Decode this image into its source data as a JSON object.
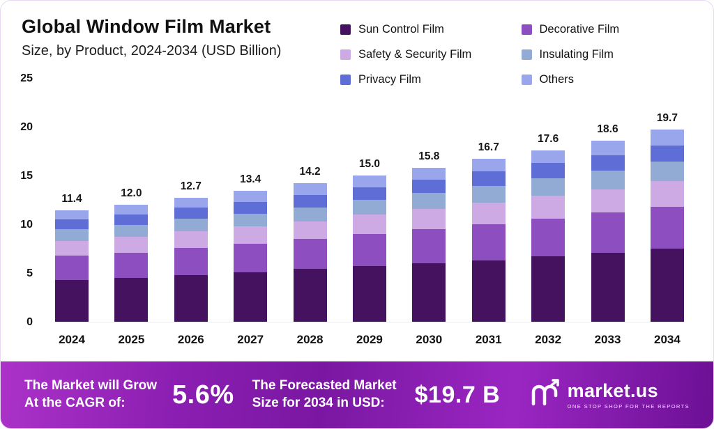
{
  "header": {
    "title": "Global Window Film Market",
    "subtitle": "Size, by Product, 2024-2034 (USD Billion)"
  },
  "chart_data": {
    "type": "bar",
    "stacked": true,
    "title": "Global Window Film Market Size, by Product, 2024-2034 (USD Billion)",
    "xlabel": "",
    "ylabel": "",
    "ylim": [
      0,
      25
    ],
    "yticks": [
      0,
      5,
      10,
      15,
      20,
      25
    ],
    "grid": false,
    "legend_position": "top-right",
    "categories": [
      "2024",
      "2025",
      "2026",
      "2027",
      "2028",
      "2029",
      "2030",
      "2031",
      "2032",
      "2033",
      "2034"
    ],
    "series": [
      {
        "name": "Sun Control Film",
        "color": "#45125f",
        "values": [
          4.3,
          4.5,
          4.8,
          5.1,
          5.4,
          5.7,
          6.0,
          6.3,
          6.7,
          7.1,
          7.5
        ]
      },
      {
        "name": "Decorative Film",
        "color": "#8d4fc0",
        "values": [
          2.5,
          2.6,
          2.8,
          2.9,
          3.1,
          3.3,
          3.5,
          3.7,
          3.9,
          4.1,
          4.3
        ]
      },
      {
        "name": "Safety & Security Film",
        "color": "#cdaae4",
        "values": [
          1.5,
          1.6,
          1.7,
          1.8,
          1.8,
          2.0,
          2.1,
          2.2,
          2.3,
          2.4,
          2.6
        ]
      },
      {
        "name": "Insulating Film",
        "color": "#92abd5",
        "values": [
          1.2,
          1.2,
          1.3,
          1.3,
          1.4,
          1.5,
          1.6,
          1.7,
          1.8,
          1.9,
          2.0
        ]
      },
      {
        "name": "Privacy Film",
        "color": "#5f6ed6",
        "values": [
          1.0,
          1.1,
          1.1,
          1.2,
          1.3,
          1.3,
          1.4,
          1.5,
          1.6,
          1.6,
          1.7
        ]
      },
      {
        "name": "Others",
        "color": "#9aa6ec",
        "values": [
          0.9,
          1.0,
          1.0,
          1.1,
          1.2,
          1.2,
          1.2,
          1.3,
          1.3,
          1.5,
          1.6
        ]
      }
    ],
    "totals": [
      "11.4",
      "12.0",
      "12.7",
      "13.4",
      "14.2",
      "15.0",
      "15.8",
      "16.7",
      "17.6",
      "18.6",
      "19.7"
    ]
  },
  "footer": {
    "growth_label_line1": "The Market will Grow",
    "growth_label_line2": "At the CAGR of:",
    "cagr_value": "5.6%",
    "forecast_label_line1": "The Forecasted Market",
    "forecast_label_line2": "Size for 2034 in USD:",
    "forecast_value": "$19.7 B",
    "brand_name": "market.us",
    "brand_tagline": "ONE STOP SHOP FOR THE REPORTS"
  }
}
